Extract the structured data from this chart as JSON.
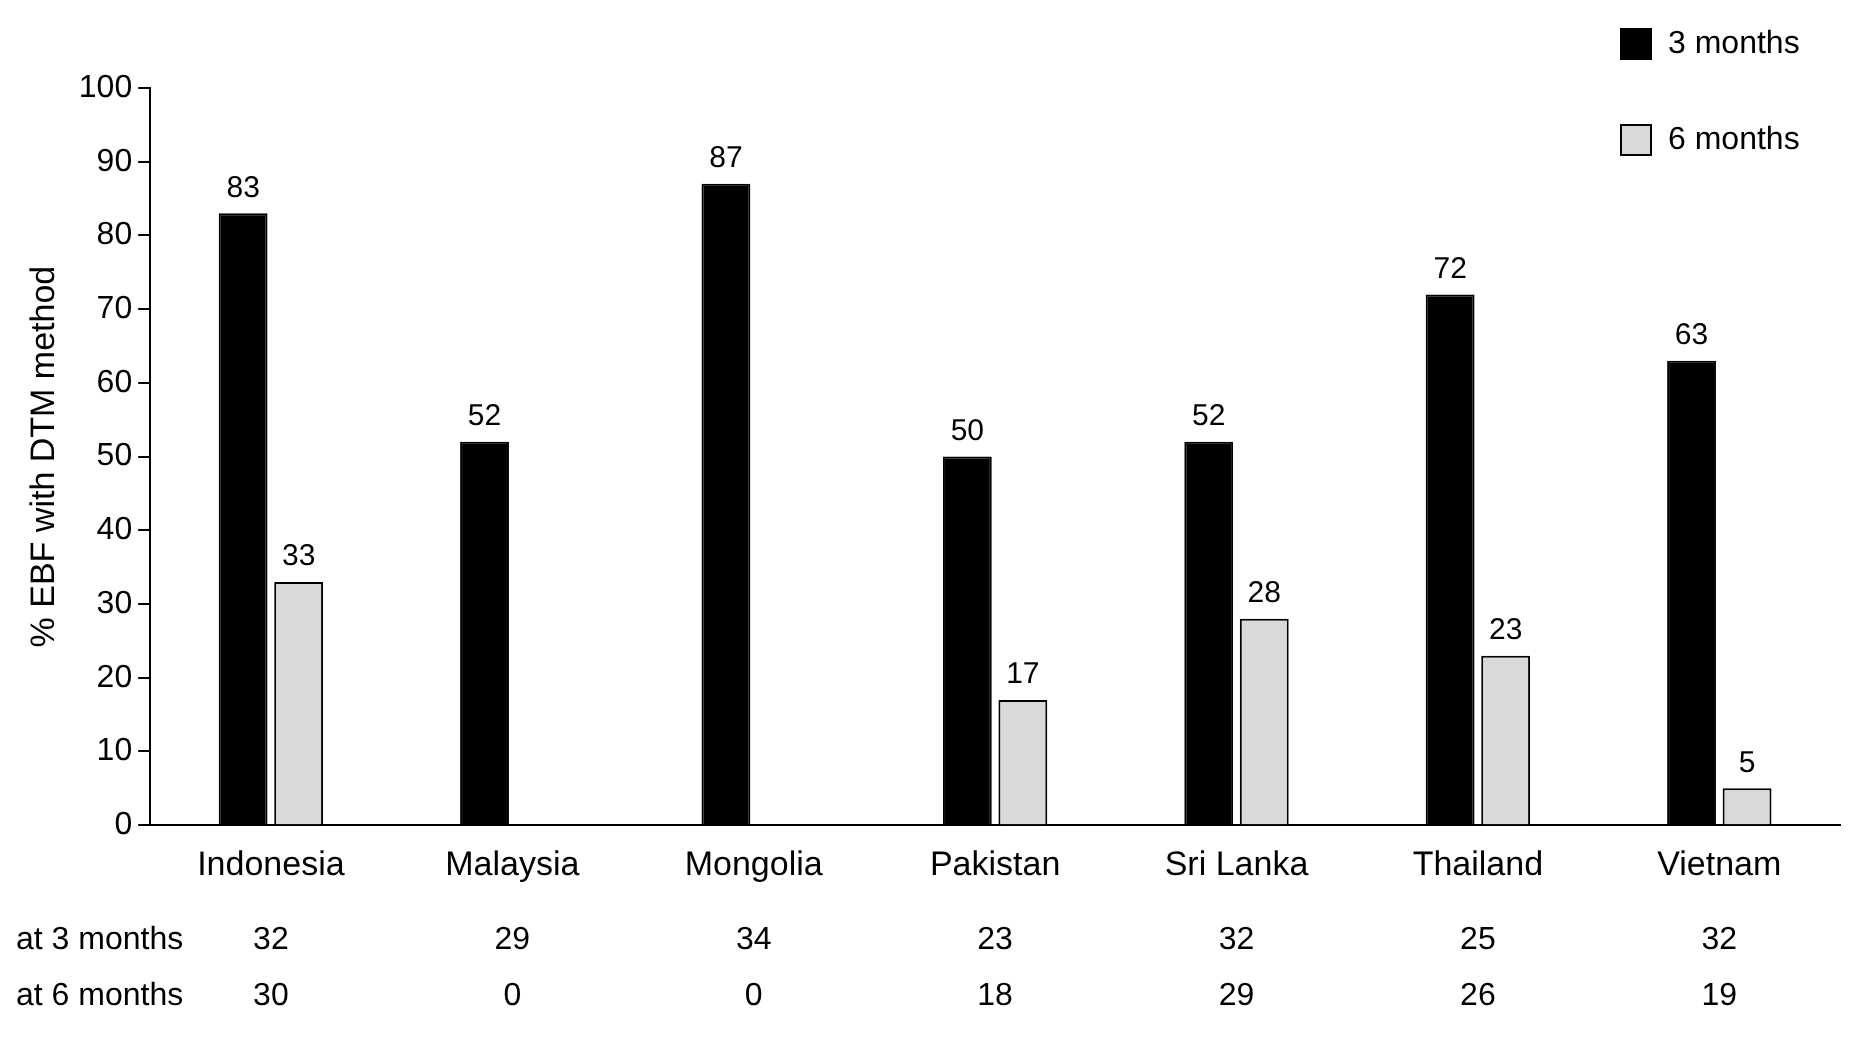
{
  "chart_data": {
    "type": "bar",
    "ylabel": "% EBF with DTM method",
    "categories": [
      "Indonesia",
      "Malaysia",
      "Mongolia",
      "Pakistan",
      "Sri Lanka",
      "Thailand",
      "Vietnam"
    ],
    "series": [
      {
        "name": "3 months",
        "color": "#000000",
        "values": [
          83,
          52,
          87,
          50,
          52,
          72,
          63
        ],
        "value_labels": [
          "83",
          "52",
          "87",
          "50",
          "52",
          "72",
          "63"
        ]
      },
      {
        "name": "6 months",
        "color": "#d9d9d9",
        "values": [
          33,
          0,
          0,
          17,
          28,
          23,
          5
        ],
        "value_labels": [
          "33",
          null,
          null,
          "17",
          "28",
          "23",
          "5"
        ]
      }
    ],
    "ylim": [
      0,
      100
    ],
    "yticks": [
      0,
      10,
      20,
      30,
      40,
      50,
      60,
      70,
      80,
      90,
      100
    ],
    "grid": false,
    "legend": "top right",
    "annotations": [
      "at 3 months",
      "32",
      "29",
      "34",
      "23",
      "32",
      "25",
      "32",
      "at 6 months",
      "30",
      "0",
      "0",
      "18",
      "29",
      "26",
      "19"
    ]
  }
}
